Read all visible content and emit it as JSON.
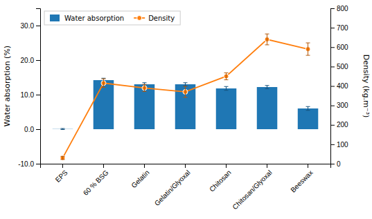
{
  "chart_data": {
    "type": "bar",
    "categories": [
      "EPS",
      "60 % BSG",
      "Gelatin",
      "Gelatin/Glyoxal",
      "Chitosan",
      "Chitosan/Glyoxal",
      "Beeswax"
    ],
    "ylabel": "Water absorption (%)",
    "y2label": "Density (kg.m⁻³)",
    "ylim": [
      -10,
      35
    ],
    "yticks": [
      {
        "value": -10,
        "label": "-10.0"
      },
      {
        "value": 0,
        "label": "0.0"
      },
      {
        "value": 10,
        "label": "10.0"
      },
      {
        "value": 20,
        "label": "20.0"
      },
      {
        "value": 30,
        "label": "30.0"
      }
    ],
    "y2lim": [
      0,
      800
    ],
    "y2ticks": [
      0,
      100,
      200,
      300,
      400,
      500,
      600,
      700,
      800
    ],
    "grid": false,
    "legend": "upper left",
    "series": [
      {
        "name": "Water absorption",
        "type": "bar",
        "values": [
          0.05,
          14.2,
          13.0,
          13.0,
          11.8,
          12.2,
          6.0
        ],
        "errors": [
          0.15,
          0.55,
          0.45,
          0.45,
          0.55,
          0.45,
          0.55
        ]
      },
      {
        "name": "Density",
        "type": "line",
        "axis": "y2",
        "marker": "circle",
        "line_style": "solid",
        "values": [
          30,
          415,
          390,
          370,
          450,
          640,
          590
        ],
        "errors": [
          8,
          22,
          18,
          28,
          18,
          28,
          32
        ]
      }
    ]
  }
}
